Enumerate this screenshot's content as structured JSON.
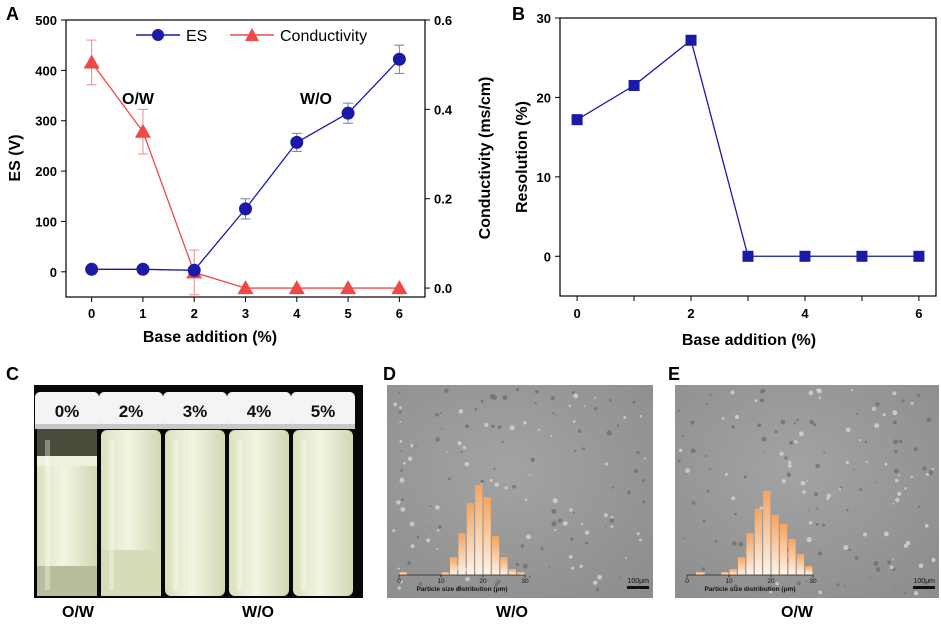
{
  "panels": {
    "A": {
      "letter": "A",
      "chart_type": "line",
      "xlabel": "Base addition (%)",
      "ylabel_left": "ES (V)",
      "ylabel_right": "Conductivity (ms/cm)",
      "x": [
        0,
        1,
        2,
        3,
        4,
        5,
        6
      ],
      "xlim": [
        -0.5,
        6.5
      ],
      "ylim_left": [
        -50,
        500
      ],
      "ylim_right": [
        -0.02,
        0.6
      ],
      "yticks_left": [
        0,
        100,
        200,
        300,
        400,
        500
      ],
      "yticks_right": [
        "0.0",
        "0.2",
        "0.4",
        "0.6"
      ],
      "annotations": [
        "O/W",
        "W/O"
      ],
      "series": [
        {
          "name": "ES",
          "axis": "left",
          "marker": "circle",
          "color": "#1a1aa6",
          "values": [
            5,
            5,
            3,
            125,
            257,
            315,
            422
          ],
          "errors": [
            0,
            0,
            0,
            20,
            18,
            20,
            28
          ]
        },
        {
          "name": "Conductivity",
          "axis": "right",
          "marker": "triangle",
          "color": "#f04848",
          "values": [
            0.505,
            0.35,
            0.035,
            0.0,
            0.0,
            0.0,
            0.0
          ],
          "errors": [
            0.05,
            0.05,
            0.05,
            0,
            0,
            0,
            0
          ]
        }
      ]
    },
    "B": {
      "letter": "B",
      "chart_type": "line",
      "xlabel": "Base addition (%)",
      "ylabel": "Resolution (%)",
      "x": [
        0,
        1,
        2,
        3,
        4,
        5,
        6
      ],
      "xlim": [
        -0.3,
        6.3
      ],
      "ylim": [
        -5,
        30
      ],
      "yticks": [
        0,
        10,
        20,
        30
      ],
      "xticks": [
        0,
        2,
        4,
        6
      ],
      "series": [
        {
          "name": "Resolution",
          "marker": "square",
          "color": "#1a1aa6",
          "values": [
            17.2,
            21.5,
            27.2,
            0,
            0,
            0,
            0
          ]
        }
      ]
    },
    "C": {
      "letter": "C",
      "bottle_labels": [
        "0%",
        "2%",
        "3%",
        "4%",
        "5%"
      ],
      "caption_left": "O/W",
      "caption_right": "W/O"
    },
    "D": {
      "letter": "D",
      "hist_xlabel": "Particle size distribution (μm)",
      "hist_ticks": [
        "0",
        "10",
        "20",
        "30"
      ],
      "bins": [
        0,
        2,
        4,
        6,
        8,
        10,
        12,
        14,
        16,
        18,
        20,
        22,
        24,
        26,
        28
      ],
      "frequencies": [
        1,
        0,
        0,
        0,
        0,
        1,
        6,
        14,
        24,
        30,
        26,
        13,
        6,
        2,
        1
      ],
      "scale_bar": "100μm",
      "caption": "W/O"
    },
    "E": {
      "letter": "E",
      "hist_xlabel": "Particle size distribution (μm)",
      "hist_ticks": [
        "0",
        "10",
        "20",
        "30"
      ],
      "bins": [
        0,
        2,
        4,
        6,
        8,
        10,
        12,
        14,
        16,
        18,
        20,
        22,
        24,
        26,
        28
      ],
      "frequencies": [
        0,
        1,
        0,
        0,
        1,
        2,
        6,
        14,
        22,
        28,
        20,
        17,
        12,
        7,
        3
      ],
      "scale_bar": "100μm",
      "caption": "O/W"
    }
  }
}
